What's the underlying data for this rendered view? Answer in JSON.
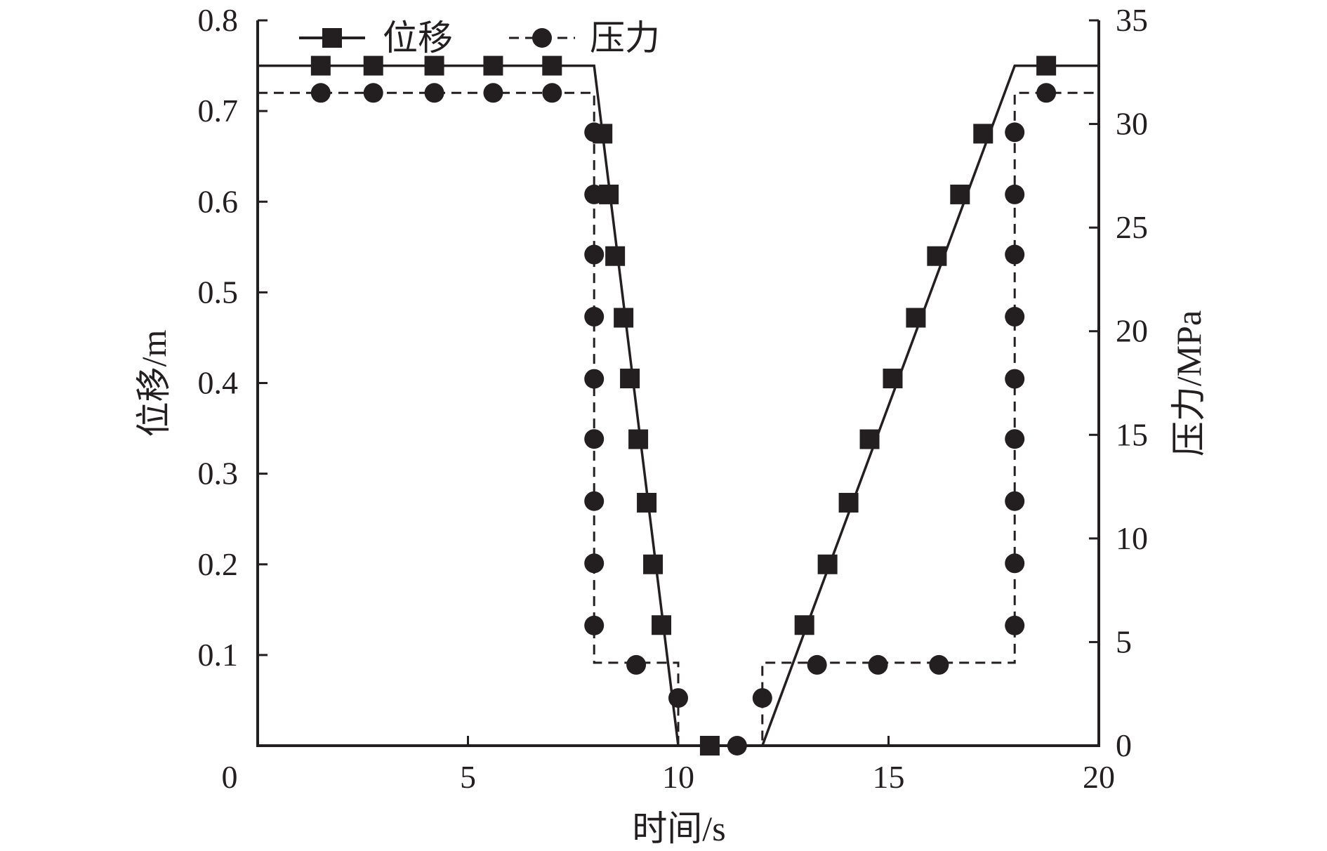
{
  "chart_data": {
    "type": "line",
    "xlabel": "时间/s",
    "ylabel_left": "位移/m",
    "ylabel_right": "压力/MPa",
    "xlim": [
      0,
      20
    ],
    "ylim_left": [
      0,
      0.8
    ],
    "ylim_right": [
      0,
      35
    ],
    "x_ticks": [
      "0",
      "5",
      "10",
      "15",
      "20"
    ],
    "y_left_ticks": [
      "0.1",
      "0.2",
      "0.3",
      "0.4",
      "0.5",
      "0.6",
      "0.7",
      "0.8"
    ],
    "y_right_ticks": [
      "0",
      "5",
      "10",
      "15",
      "20",
      "25",
      "30",
      "35"
    ],
    "grid": false,
    "legend_position": "top-left",
    "legend": [
      {
        "label": "位移",
        "style": "solid-square"
      },
      {
        "label": "压力",
        "style": "dashed-circle"
      }
    ],
    "series": [
      {
        "name": "位移",
        "axis": "left",
        "line": [
          [
            0,
            0.75
          ],
          [
            8,
            0.75
          ],
          [
            10,
            0
          ],
          [
            12,
            0
          ],
          [
            18,
            0.75
          ],
          [
            20,
            0.75
          ]
        ],
        "markers": [
          [
            1.5,
            0.75
          ],
          [
            2.75,
            0.75
          ],
          [
            4.2,
            0.75
          ],
          [
            5.6,
            0.75
          ],
          [
            7.0,
            0.75
          ],
          [
            8.2,
            0.675
          ],
          [
            8.35,
            0.608
          ],
          [
            8.5,
            0.54
          ],
          [
            8.7,
            0.472
          ],
          [
            8.85,
            0.405
          ],
          [
            9.05,
            0.338
          ],
          [
            9.25,
            0.268
          ],
          [
            9.4,
            0.2
          ],
          [
            9.6,
            0.133
          ],
          [
            10.75,
            0
          ],
          [
            13.0,
            0.133
          ],
          [
            13.55,
            0.2
          ],
          [
            14.05,
            0.268
          ],
          [
            14.55,
            0.338
          ],
          [
            15.1,
            0.405
          ],
          [
            15.65,
            0.472
          ],
          [
            16.15,
            0.54
          ],
          [
            16.7,
            0.608
          ],
          [
            17.25,
            0.675
          ],
          [
            18.75,
            0.75
          ]
        ]
      },
      {
        "name": "压力",
        "axis": "right",
        "line": [
          [
            0,
            31.5
          ],
          [
            8,
            31.5
          ],
          [
            8,
            4
          ],
          [
            10,
            4
          ],
          [
            10,
            0
          ],
          [
            12,
            0
          ],
          [
            12,
            4
          ],
          [
            18,
            4
          ],
          [
            18,
            31.5
          ],
          [
            20,
            31.5
          ]
        ],
        "markers": [
          [
            1.5,
            31.5
          ],
          [
            2.75,
            31.5
          ],
          [
            4.2,
            31.5
          ],
          [
            5.6,
            31.5
          ],
          [
            7.0,
            31.5
          ],
          [
            8,
            29.6
          ],
          [
            8,
            26.6
          ],
          [
            8,
            23.7
          ],
          [
            8,
            20.7
          ],
          [
            8,
            17.7
          ],
          [
            8,
            14.8
          ],
          [
            8,
            11.8
          ],
          [
            8,
            8.8
          ],
          [
            8,
            5.8
          ],
          [
            9,
            3.9
          ],
          [
            10,
            2.3
          ],
          [
            11.4,
            0
          ],
          [
            12,
            2.3
          ],
          [
            13.3,
            3.9
          ],
          [
            14.75,
            3.9
          ],
          [
            16.2,
            3.9
          ],
          [
            18,
            29.6
          ],
          [
            18,
            26.6
          ],
          [
            18,
            23.7
          ],
          [
            18,
            20.7
          ],
          [
            18,
            17.7
          ],
          [
            18,
            14.8
          ],
          [
            18,
            11.8
          ],
          [
            18,
            8.8
          ],
          [
            18,
            5.8
          ],
          [
            18.75,
            31.5
          ]
        ]
      }
    ]
  }
}
